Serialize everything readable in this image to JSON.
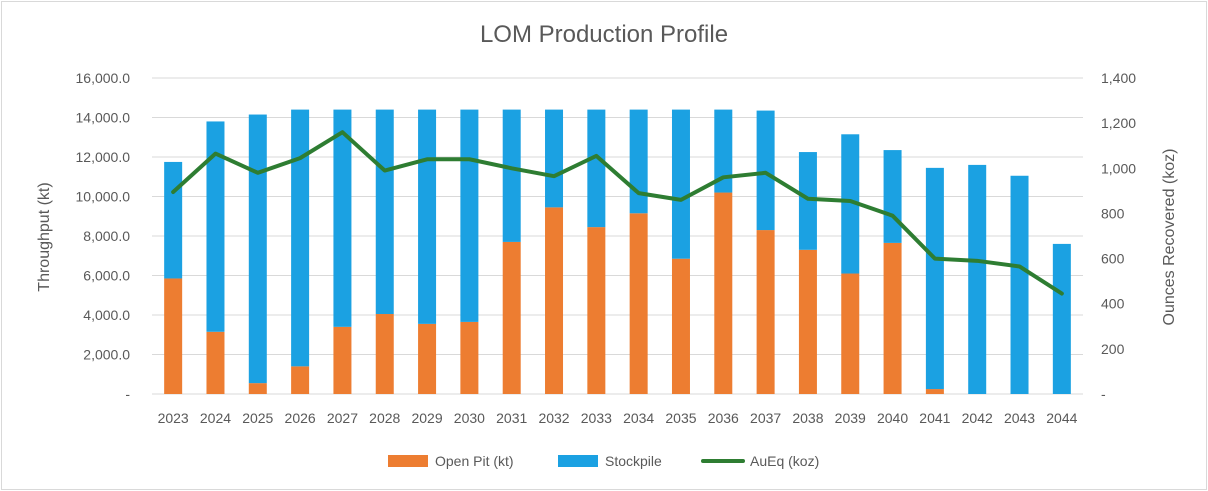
{
  "chart_data": {
    "type": "bar",
    "subtype": "stacked-bar-with-line-secondary-axis",
    "title": "LOM Production Profile",
    "ylabel": "Throughput (kt)",
    "y2label": "Ounces Recovered (koz)",
    "ylim": [
      0,
      16000
    ],
    "y2lim": [
      0,
      1400
    ],
    "yticks": [
      "-",
      "2,000.0",
      "4,000.0",
      "6,000.0",
      "8,000.0",
      "10,000.0",
      "12,000.0",
      "14,000.0",
      "16,000.0"
    ],
    "y2ticks": [
      "-",
      "200",
      "400",
      "600",
      "800",
      "1,000",
      "1,200",
      "1,400"
    ],
    "grid": "horizontal",
    "legend_position": "bottom",
    "categories": [
      "2023",
      "2024",
      "2025",
      "2026",
      "2027",
      "2028",
      "2029",
      "2030",
      "2031",
      "2032",
      "2033",
      "2034",
      "2035",
      "2036",
      "2037",
      "2038",
      "2039",
      "2040",
      "2041",
      "2042",
      "2043",
      "2044"
    ],
    "series": [
      {
        "name": "Open Pit (kt)",
        "type": "bar",
        "axis": "left",
        "color": "#ed7d31",
        "values": [
          5850,
          3150,
          550,
          1400,
          3400,
          4050,
          3550,
          3650,
          7700,
          9450,
          8450,
          9150,
          6850,
          10200,
          8300,
          7300,
          6100,
          7650,
          250,
          0,
          0,
          0
        ]
      },
      {
        "name": "Stockpile",
        "type": "bar",
        "axis": "left",
        "color": "#1ba1e2",
        "values": [
          5900,
          10650,
          13600,
          13000,
          11000,
          10350,
          10850,
          10750,
          6700,
          4950,
          5950,
          5250,
          7550,
          4200,
          6050,
          4950,
          7050,
          4700,
          11200,
          11600,
          11050,
          7600
        ]
      },
      {
        "name": "AuEq (koz)",
        "type": "line",
        "axis": "right",
        "color": "#2e7d32",
        "values": [
          895,
          1065,
          980,
          1045,
          1160,
          990,
          1040,
          1040,
          1000,
          965,
          1055,
          890,
          860,
          960,
          980,
          865,
          855,
          790,
          600,
          590,
          565,
          445
        ]
      }
    ]
  }
}
